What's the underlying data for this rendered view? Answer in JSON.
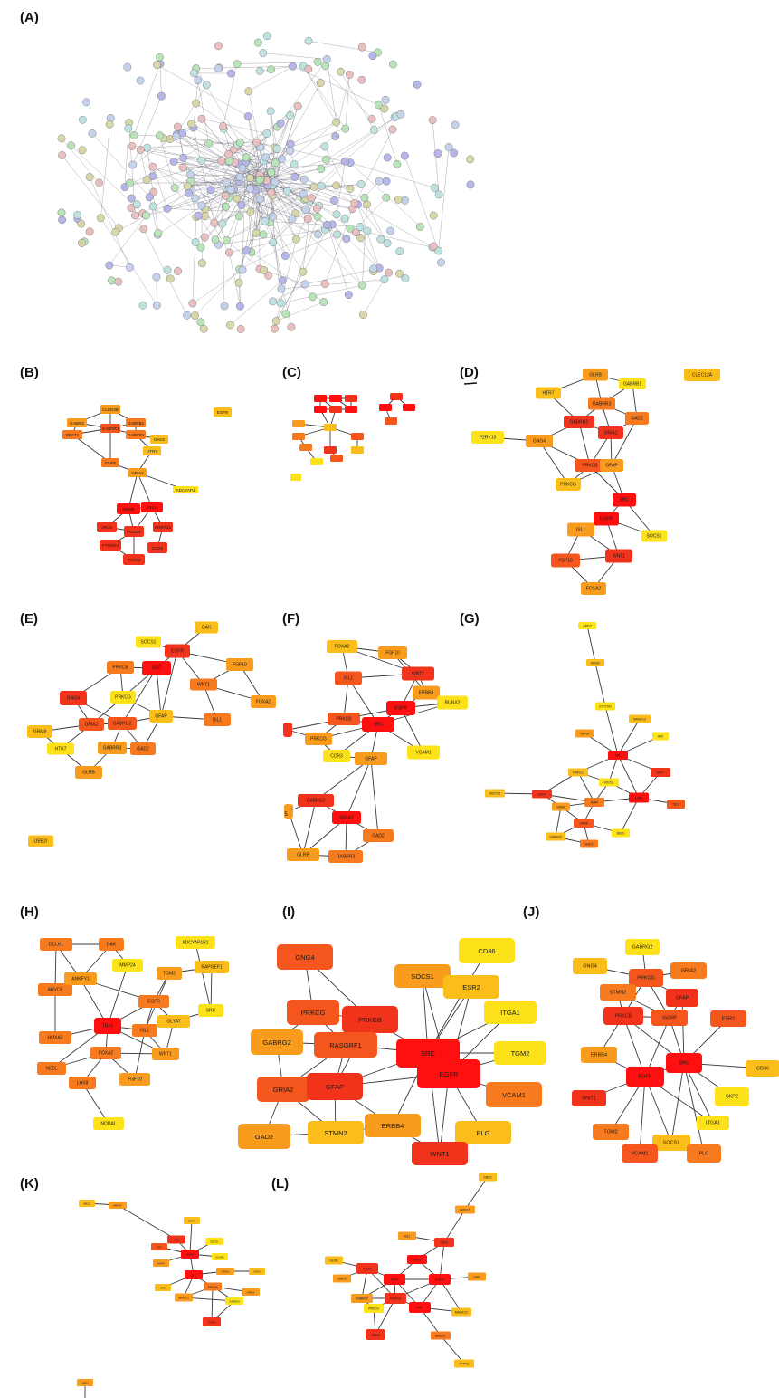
{
  "panel_labels": [
    "(A)",
    "(B)",
    "(C)",
    "(D)",
    "(E)",
    "(F)",
    "(G)",
    "(H)",
    "(I)",
    "(J)",
    "(K)",
    "(L)"
  ],
  "heat_colors": [
    "#ff1010",
    "#f2331c",
    "#f5561e",
    "#f77a1e",
    "#f99b1c",
    "#fbbd1a",
    "#fde21a"
  ],
  "panel_A": {
    "description_shown": "protein-protein interaction network (unlabeled at this scale)",
    "node_palette": [
      "#b7b6e8",
      "#b9e3b8",
      "#e9c0bf",
      "#bfe2e0",
      "#d7d7a9",
      "#c4d2ec"
    ]
  },
  "panels": {
    "B": {
      "nodes": [
        {
          "id": "CLDN4B",
          "color": "#f99b1c"
        },
        {
          "id": "GABRG",
          "color": "#f99b1c"
        },
        {
          "id": "GABRB1",
          "color": "#f77a1e"
        },
        {
          "id": "GABRR3",
          "color": "#f5561e"
        },
        {
          "id": "BEST1",
          "color": "#f77a1e"
        },
        {
          "id": "GABRB3",
          "color": "#f77a1e"
        },
        {
          "id": "GAD2",
          "color": "#fbbd1a"
        },
        {
          "id": "HTR7",
          "color": "#fbbd1a"
        },
        {
          "id": "GLRB",
          "color": "#f77a1e"
        },
        {
          "id": "GRIA2",
          "color": "#f99b1c"
        },
        {
          "id": "ADCYAP1",
          "color": "#fde21a"
        },
        {
          "id": "EGFR",
          "color": "#fbbd1a"
        },
        {
          "id": "GRM8",
          "color": "#ff1010"
        },
        {
          "id": "ISL1",
          "color": "#ff1010"
        },
        {
          "id": "APLN",
          "color": "#f2331c"
        },
        {
          "id": "FOXO4",
          "color": "#f2331c"
        },
        {
          "id": "PRRY13",
          "color": "#f2331c"
        },
        {
          "id": "PTGER3",
          "color": "#f2331c"
        },
        {
          "id": "CCR5",
          "color": "#f2331c"
        },
        {
          "id": "TNRD3",
          "color": "#f2331c"
        }
      ]
    },
    "C": {
      "nodes": [
        {
          "id": "n1",
          "color": "#ff1010"
        },
        {
          "id": "n2",
          "color": "#ff1010"
        },
        {
          "id": "n3",
          "color": "#f2331c"
        },
        {
          "id": "n4",
          "color": "#ff1010"
        },
        {
          "id": "n5",
          "color": "#f2331c"
        },
        {
          "id": "n6",
          "color": "#ff1010"
        },
        {
          "id": "n7",
          "color": "#f99b1c"
        },
        {
          "id": "n8",
          "color": "#fbbd1a"
        },
        {
          "id": "n9",
          "color": "#f77a1e"
        },
        {
          "id": "n10",
          "color": "#f5561e"
        },
        {
          "id": "n11",
          "color": "#f77a1e"
        },
        {
          "id": "n12",
          "color": "#f2331c"
        },
        {
          "id": "n13",
          "color": "#f5561e"
        },
        {
          "id": "n14",
          "color": "#fbbd1a"
        },
        {
          "id": "n15",
          "color": "#fde21a"
        },
        {
          "id": "n16",
          "color": "#fde21a"
        },
        {
          "id": "n17",
          "color": "#f2331c"
        },
        {
          "id": "n18",
          "color": "#ff1010"
        },
        {
          "id": "n19",
          "color": "#ff1010"
        },
        {
          "id": "n20",
          "color": "#f5561e"
        }
      ]
    },
    "D": {
      "nodes": [
        {
          "id": "GLRB",
          "color": "#f99b1c"
        },
        {
          "id": "GABRB1",
          "color": "#fde21a"
        },
        {
          "id": "CLEC12A",
          "color": "#fbbd1a"
        },
        {
          "id": "HTR7",
          "color": "#fbbd1a"
        },
        {
          "id": "GABRR3",
          "color": "#f77a1e"
        },
        {
          "id": "GABRG2",
          "color": "#f2331c"
        },
        {
          "id": "GAD2",
          "color": "#f77a1e"
        },
        {
          "id": "GRIA2",
          "color": "#f2331c"
        },
        {
          "id": "P2RY13",
          "color": "#fde21a"
        },
        {
          "id": "GNG4",
          "color": "#f99b1c"
        },
        {
          "id": "PRKCB",
          "color": "#f5561e"
        },
        {
          "id": "GFAP",
          "color": "#f99b1c"
        },
        {
          "id": "PRKCG",
          "color": "#fbbd1a"
        },
        {
          "id": "SRC",
          "color": "#ff1010"
        },
        {
          "id": "EGFR",
          "color": "#ff1010"
        },
        {
          "id": "ISL1",
          "color": "#f99b1c"
        },
        {
          "id": "SOCS1",
          "color": "#fde21a"
        },
        {
          "id": "FGF10",
          "color": "#f5561e"
        },
        {
          "id": "WNT1",
          "color": "#f2331c"
        },
        {
          "id": "FOXA2",
          "color": "#f99b1c"
        }
      ]
    },
    "E": {
      "nodes": [
        {
          "id": "GAK",
          "color": "#fbbd1a"
        },
        {
          "id": "SOCS1",
          "color": "#fde21a"
        },
        {
          "id": "EGFR",
          "color": "#f2331c"
        },
        {
          "id": "PRKCB",
          "color": "#f77a1e"
        },
        {
          "id": "SRC",
          "color": "#ff1010"
        },
        {
          "id": "FGF10",
          "color": "#f99b1c"
        },
        {
          "id": "WNT1",
          "color": "#f77a1e"
        },
        {
          "id": "GNG4",
          "color": "#f2331c"
        },
        {
          "id": "PRKCG",
          "color": "#fde21a"
        },
        {
          "id": "FOXA2",
          "color": "#f99b1c"
        },
        {
          "id": "GFAP",
          "color": "#fbbd1a"
        },
        {
          "id": "ISL1",
          "color": "#f77a1e"
        },
        {
          "id": "GRIA2",
          "color": "#f5561e"
        },
        {
          "id": "GABRG2",
          "color": "#f5561e"
        },
        {
          "id": "GRM8",
          "color": "#fbbd1a"
        },
        {
          "id": "HTR7",
          "color": "#fde21a"
        },
        {
          "id": "GABRR3",
          "color": "#f99b1c"
        },
        {
          "id": "GAD2",
          "color": "#f77a1e"
        },
        {
          "id": "GLRB",
          "color": "#f99b1c"
        },
        {
          "id": "UBE2I",
          "color": "#fbbd1a"
        }
      ]
    },
    "F": {
      "nodes": [
        {
          "id": "FOXA2",
          "color": "#fbbd1a"
        },
        {
          "id": "FGF10",
          "color": "#f99b1c"
        },
        {
          "id": "WNT1",
          "color": "#f2331c"
        },
        {
          "id": "ISL1",
          "color": "#f5561e"
        },
        {
          "id": "ERBB4",
          "color": "#f99b1c"
        },
        {
          "id": "EGFR",
          "color": "#ff1010"
        },
        {
          "id": "RUNX2",
          "color": "#fde21a"
        },
        {
          "id": "PRKCB",
          "color": "#f5561e"
        },
        {
          "id": "SRC",
          "color": "#ff1010"
        },
        {
          "id": "PRKCG",
          "color": "#f99b1c"
        },
        {
          "id": "CCR3",
          "color": "#fde21a"
        },
        {
          "id": "VCAM1",
          "color": "#fde21a"
        },
        {
          "id": "GFAP",
          "color": "#f99b1c"
        },
        {
          "id": "GABRG2",
          "color": "#f2331c"
        },
        {
          "id": "GRIA2",
          "color": "#ff1010"
        },
        {
          "id": "GAD2",
          "color": "#f77a1e"
        },
        {
          "id": "GLRB",
          "color": "#f99b1c"
        },
        {
          "id": "GABRR3",
          "color": "#f77a1e"
        },
        {
          "id": "edge1",
          "color": "#f2331c"
        },
        {
          "id": "edge2",
          "color": "#f99b1c"
        }
      ],
      "edge_labels": [
        "5"
      ]
    },
    "G": {
      "nodes": [
        {
          "id": "UBE2I",
          "color": "#fde21a"
        },
        {
          "id": "NR0A2",
          "color": "#fbbd1a"
        },
        {
          "id": "CYP17A1",
          "color": "#fde21a"
        },
        {
          "id": "MAGEC2",
          "color": "#fbbd1a"
        },
        {
          "id": "TRPV4",
          "color": "#f99b1c"
        },
        {
          "id": "HR2",
          "color": "#fde21a"
        },
        {
          "id": "SRC",
          "color": "#ff1010"
        },
        {
          "id": "PRKCG",
          "color": "#fbbd1a"
        },
        {
          "id": "WNT1",
          "color": "#f2331c"
        },
        {
          "id": "SOCS1",
          "color": "#fde21a"
        },
        {
          "id": "ADCY10",
          "color": "#fbbd1a"
        },
        {
          "id": "GNG4",
          "color": "#f2331c"
        },
        {
          "id": "GFAP",
          "color": "#f77a1e"
        },
        {
          "id": "EGFR",
          "color": "#ff1010"
        },
        {
          "id": "TBX1",
          "color": "#f5561e"
        },
        {
          "id": "GRIA2",
          "color": "#f99b1c"
        },
        {
          "id": "GRM8",
          "color": "#f5561e"
        },
        {
          "id": "NEUS",
          "color": "#fde21a"
        },
        {
          "id": "GABRR3",
          "color": "#fbbd1a"
        },
        {
          "id": "GAD2",
          "color": "#f77a1e"
        }
      ]
    },
    "H": {
      "nodes": [
        {
          "id": "ADCYAP1R1",
          "color": "#fde21a"
        },
        {
          "id": "DCLK1",
          "color": "#f77a1e"
        },
        {
          "id": "GAK",
          "color": "#f77a1e"
        },
        {
          "id": "MMP24",
          "color": "#fde21a"
        },
        {
          "id": "RAPGEF1",
          "color": "#fbbd1a"
        },
        {
          "id": "TGM2",
          "color": "#f99b1c"
        },
        {
          "id": "ARVCF",
          "color": "#f77a1e"
        },
        {
          "id": "ANKFY1",
          "color": "#f99b1c"
        },
        {
          "id": "EGFR",
          "color": "#f77a1e"
        },
        {
          "id": "SRC",
          "color": "#fde21a"
        },
        {
          "id": "HOXA3",
          "color": "#f77a1e"
        },
        {
          "id": "TBX1",
          "color": "#ff1010"
        },
        {
          "id": "GLYAT",
          "color": "#fbbd1a"
        },
        {
          "id": "ISL1",
          "color": "#f77a1e"
        },
        {
          "id": "FOXA2",
          "color": "#f77a1e"
        },
        {
          "id": "WNT1",
          "color": "#f99b1c"
        },
        {
          "id": "NEBL",
          "color": "#f77a1e"
        },
        {
          "id": "LHX8",
          "color": "#f77a1e"
        },
        {
          "id": "FGF10",
          "color": "#f99b1c"
        },
        {
          "id": "NODAL",
          "color": "#fde21a"
        }
      ]
    },
    "I": {
      "nodes": [
        {
          "id": "GNG4",
          "color": "#f5561e"
        },
        {
          "id": "CD36",
          "color": "#fde21a"
        },
        {
          "id": "SOCS1",
          "color": "#f99b1c"
        },
        {
          "id": "ESR2",
          "color": "#fbbd1a"
        },
        {
          "id": "PRKCG",
          "color": "#f5561e"
        },
        {
          "id": "PRKCB",
          "color": "#f2331c"
        },
        {
          "id": "ITGA1",
          "color": "#fde21a"
        },
        {
          "id": "GABRG2",
          "color": "#f99b1c"
        },
        {
          "id": "RASGRF1",
          "color": "#f5561e"
        },
        {
          "id": "SRC",
          "color": "#ff1010"
        },
        {
          "id": "TGM2",
          "color": "#fde21a"
        },
        {
          "id": "EGFR",
          "color": "#ff1010"
        },
        {
          "id": "GRIA2",
          "color": "#f5561e"
        },
        {
          "id": "GFAP",
          "color": "#f2331c"
        },
        {
          "id": "VCAM1",
          "color": "#f77a1e"
        },
        {
          "id": "ERBB4",
          "color": "#f99b1c"
        },
        {
          "id": "GAD2",
          "color": "#f99b1c"
        },
        {
          "id": "STMN2",
          "color": "#fbbd1a"
        },
        {
          "id": "PLG",
          "color": "#fbbd1a"
        },
        {
          "id": "WNT1",
          "color": "#f2331c"
        }
      ]
    },
    "J": {
      "nodes": [
        {
          "id": "GABRG2",
          "color": "#fde21a"
        },
        {
          "id": "GNG4",
          "color": "#fbbd1a"
        },
        {
          "id": "GRIA2",
          "color": "#f77a1e"
        },
        {
          "id": "PRKCG",
          "color": "#f5561e"
        },
        {
          "id": "STMN2",
          "color": "#f77a1e"
        },
        {
          "id": "GFAP",
          "color": "#f2331c"
        },
        {
          "id": "PRKCB",
          "color": "#f2331c"
        },
        {
          "id": "RASGRF1",
          "color": "#f5561e"
        },
        {
          "id": "ESR2",
          "color": "#f5561e"
        },
        {
          "id": "ERBB4",
          "color": "#f99b1c"
        },
        {
          "id": "SRC",
          "color": "#ff1010"
        },
        {
          "id": "CD36",
          "color": "#fbbd1a"
        },
        {
          "id": "EGFR",
          "color": "#ff1010"
        },
        {
          "id": "WNT1",
          "color": "#f2331c"
        },
        {
          "id": "SKP2",
          "color": "#fde21a"
        },
        {
          "id": "ITGA1",
          "color": "#fde21a"
        },
        {
          "id": "TGM2",
          "color": "#f77a1e"
        },
        {
          "id": "SOCS1",
          "color": "#fbbd1a"
        },
        {
          "id": "VCAM1",
          "color": "#f5561e"
        },
        {
          "id": "PLG",
          "color": "#f77a1e"
        }
      ],
      "visible_labels": {
        "RASGRF1": "\\SGRF"
      }
    },
    "K": {
      "nodes": [
        {
          "id": "DBC2",
          "color": "#fbbd1a"
        },
        {
          "id": "ARVCF",
          "color": "#f99b1c"
        },
        {
          "id": "NDUF",
          "color": "#fbbd1a"
        },
        {
          "id": "TBX1",
          "color": "#f2331c"
        },
        {
          "id": "FGF",
          "color": "#f5561e"
        },
        {
          "id": "SOCS1",
          "color": "#fde21a"
        },
        {
          "id": "EGFR",
          "color": "#ff1010"
        },
        {
          "id": "VCAM1",
          "color": "#fde21a"
        },
        {
          "id": "GFAP",
          "color": "#f99b1c"
        },
        {
          "id": "SRC",
          "color": "#ff1010"
        },
        {
          "id": "GRIA2",
          "color": "#f99b1c"
        },
        {
          "id": "GAD2",
          "color": "#fbbd1a"
        },
        {
          "id": "HR2",
          "color": "#fbbd1a"
        },
        {
          "id": "PRKCB",
          "color": "#f77a1e"
        },
        {
          "id": "GRIK2",
          "color": "#f99b1c"
        },
        {
          "id": "MAGEC2",
          "color": "#f99b1c"
        },
        {
          "id": "GABRG2",
          "color": "#fde21a"
        },
        {
          "id": "GNG4",
          "color": "#f2331c"
        },
        {
          "id": "UBE2",
          "color": "#f99b1c"
        },
        {
          "id": "NCOR2",
          "color": "#f99b1c"
        }
      ]
    },
    "L": {
      "nodes": [
        {
          "id": "DBC2",
          "color": "#fbbd1a"
        },
        {
          "id": "ARVCF",
          "color": "#f99b1c"
        },
        {
          "id": "ISL1",
          "color": "#f99b1c"
        },
        {
          "id": "TBX1",
          "color": "#f2331c"
        },
        {
          "id": "GLRB",
          "color": "#fbbd1a"
        },
        {
          "id": "GRIA2",
          "color": "#f2331c"
        },
        {
          "id": "WNT1",
          "color": "#ff1010"
        },
        {
          "id": "GAK",
          "color": "#f99b1c"
        },
        {
          "id": "GAD2",
          "color": "#f99b1c"
        },
        {
          "id": "GFAP",
          "color": "#ff1010"
        },
        {
          "id": "EGFR",
          "color": "#ff1010"
        },
        {
          "id": "GABRG2",
          "color": "#f99b1c"
        },
        {
          "id": "PRKCB",
          "color": "#f2331c"
        },
        {
          "id": "SRC",
          "color": "#ff1010"
        },
        {
          "id": "MAGEC2",
          "color": "#fbbd1a"
        },
        {
          "id": "PRKCG",
          "color": "#fde21a"
        },
        {
          "id": "GNG4",
          "color": "#f2331c"
        },
        {
          "id": "SOCS1",
          "color": "#f77a1e"
        },
        {
          "id": "PTPN2",
          "color": "#fbbd1a"
        },
        {
          "id": "UBE2I",
          "color": "#fbbd1a"
        }
      ]
    }
  }
}
